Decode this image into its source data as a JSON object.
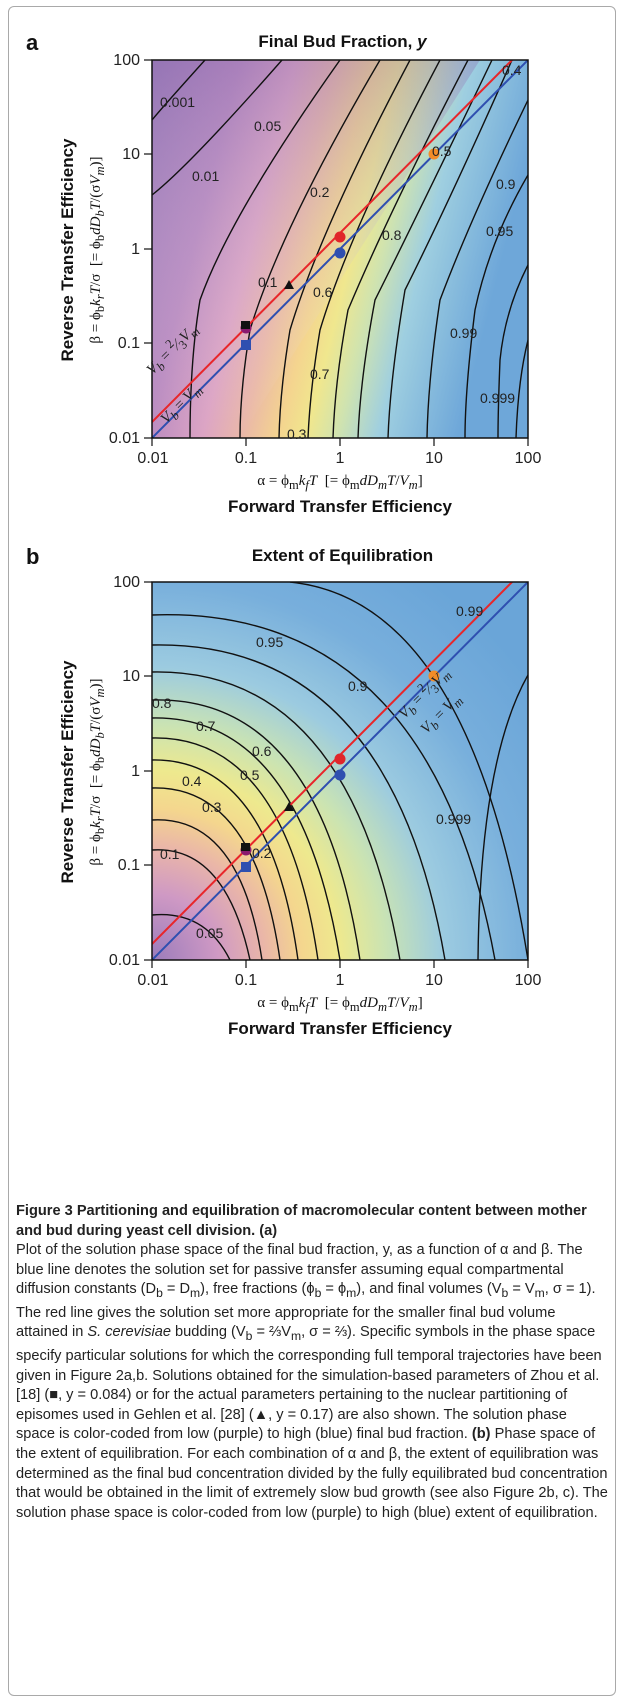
{
  "panel_a": {
    "letter": "a",
    "title": "Final Bud Fraction, y",
    "x_formula": "α = ϕ<sub>m</sub>k<sub>f</sub>T  [= ϕ<sub>m</sub>dD<sub>m</sub>T/V<sub>m</sub>]",
    "x_title": "Forward Transfer Efficiency",
    "y_title": "Reverse Transfer Efficiency",
    "y_formula": "β = ϕ<sub>b</sub>k<sub>r</sub>T/σ  [= ϕ<sub>b</sub>dD<sub>b</sub>T/(σV<sub>m</sub>)]",
    "x_ticks": [
      "0.01",
      "0.1",
      "1",
      "10",
      "100"
    ],
    "y_ticks": [
      "100",
      "10",
      "1",
      "0.1",
      "0.01"
    ],
    "contour_labels": [
      "0.001",
      "0.01",
      "0.05",
      "0.1",
      "0.2",
      "0.3",
      "0.4",
      "0.5",
      "0.6",
      "0.7",
      "0.8",
      "0.9",
      "0.95",
      "0.99",
      "0.999"
    ],
    "line_labels": [
      "V_b = 2/3 V_m",
      "V_b = V_m"
    ]
  },
  "panel_b": {
    "letter": "b",
    "title": "Extent of Equilibration",
    "x_formula": "α = ϕ<sub>m</sub>k<sub>f</sub>T  [= ϕ<sub>m</sub>dD<sub>m</sub>T/V<sub>m</sub>]",
    "x_title": "Forward Transfer Efficiency",
    "y_title": "Reverse Transfer Efficiency",
    "y_formula": "β = ϕ<sub>b</sub>k<sub>r</sub>T/σ  [= ϕ<sub>b</sub>dD<sub>b</sub>T/(σV<sub>m</sub>)]",
    "x_ticks": [
      "0.01",
      "0.1",
      "1",
      "10",
      "100"
    ],
    "y_ticks": [
      "100",
      "10",
      "1",
      "0.1",
      "0.01"
    ],
    "contour_labels": [
      "0.05",
      "0.1",
      "0.2",
      "0.3",
      "0.4",
      "0.5",
      "0.6",
      "0.7",
      "0.8",
      "0.9",
      "0.95",
      "0.99",
      "0.999"
    ],
    "line_labels": [
      "V_b = 2/3 V_m",
      "V_b = V_m"
    ]
  },
  "colors": {
    "red_line": "#e8262a",
    "blue_line": "#2f4fb0",
    "orange_point": "#f28c28",
    "red_point": "#e0262a",
    "blue_point": "#2f4fb0",
    "purple_point": "#8a1a6e",
    "low_purple": "#9a7bbb",
    "high_blue": "#6aa8dc"
  },
  "caption": {
    "title": "Figure 3 Partitioning and equilibration of macromolecular content between mother and bud during yeast cell division.",
    "label_a": "(a)",
    "text_a1": "Plot of the solution phase space of the final bud fraction, y, as a function of α and β. The blue line denotes the solution set for passive transfer assuming equal compartmental diffusion constants (D",
    "text_a2": "), free fractions (ϕ",
    "text_a3": "), and final volumes (V",
    "text_a4": ", σ = 1). The red line gives the solution set more appropriate for the smaller final bud volume attained in",
    "species": "S. cerevisiae",
    "text_a5": "budding (V",
    "text_a6": ", σ = ⅔). Specific symbols in the phase space specify particular solutions for which the corresponding full temporal trajectories have been given in Figure 2a,b. Solutions obtained for the simulation-based parameters of Zhou et al. [18] (■, y = 0.084) or for the actual parameters pertaining to the nuclear partitioning of episomes used in Gehlen et al. [28] (▲, y = 0.17) are also shown. The solution phase space is color-coded from low (purple) to high (blue) final bud fraction.",
    "label_b": "(b)",
    "text_b": "Phase space of the extent of equilibration. For each combination of α and β, the extent of equilibration was determined as the final bud concentration divided by the fully equilibrated bud concentration that would be obtained in the limit of extremely slow bud growth (see also Figure 2b, c). The solution phase space is color-coded from low (purple) to high (blue) extent of equilibration."
  }
}
